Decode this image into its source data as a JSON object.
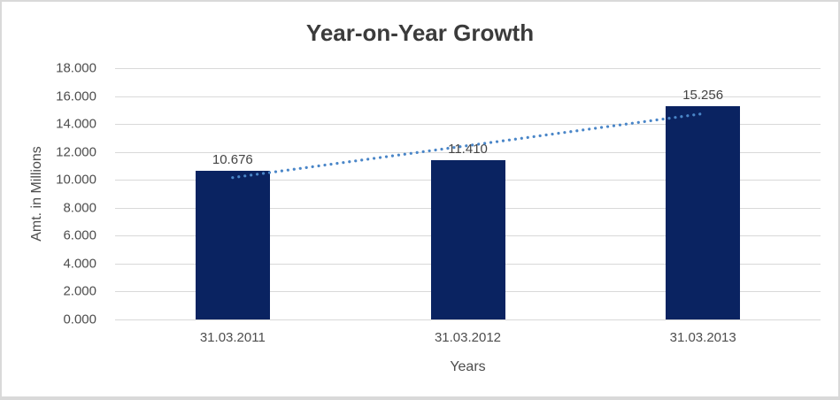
{
  "chart_data": {
    "type": "bar",
    "title": "Year-on-Year Growth",
    "categories": [
      "31.03.2011",
      "31.03.2012",
      "31.03.2013"
    ],
    "values": [
      10.676,
      11.41,
      15.256
    ],
    "value_labels": [
      "10.676",
      "11.410",
      "15.256"
    ],
    "xlabel": "Years",
    "ylabel": "Amt. in Millions",
    "ylim": [
      0,
      18
    ],
    "y_tick_step": 2,
    "y_tick_labels": [
      "0.000",
      "2.000",
      "4.000",
      "6.000",
      "8.000",
      "10.000",
      "12.000",
      "14.000",
      "16.000",
      "18.000"
    ],
    "grid": true,
    "legend": "none",
    "trendline": {
      "type": "linear",
      "style": "dotted",
      "start_value": 10.16,
      "end_value": 14.74
    },
    "colors": {
      "bar": "#0a2361",
      "gridline": "#d9d9d9",
      "trendline": "#4a86c8",
      "axis_text": "#4d4d4d",
      "title_text": "#3b3b3b"
    }
  }
}
